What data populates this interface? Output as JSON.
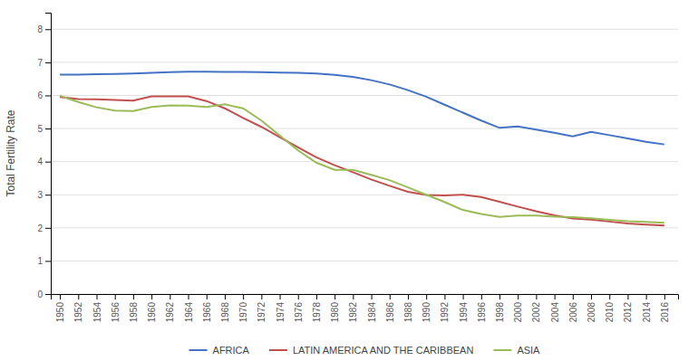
{
  "chart_data": {
    "type": "line",
    "ylabel": "Total Fertility Rate",
    "x": [
      1950,
      1952,
      1954,
      1956,
      1958,
      1960,
      1962,
      1964,
      1966,
      1968,
      1970,
      1972,
      1974,
      1976,
      1978,
      1980,
      1982,
      1984,
      1986,
      1988,
      1990,
      1992,
      1994,
      1996,
      1998,
      2000,
      2002,
      2004,
      2006,
      2008,
      2010,
      2012,
      2014,
      2016
    ],
    "series": [
      {
        "name": "AFRICA",
        "color": "#4472C4",
        "values": [
          6.63,
          6.63,
          6.64,
          6.65,
          6.66,
          6.68,
          6.7,
          6.72,
          6.72,
          6.71,
          6.71,
          6.7,
          6.69,
          6.68,
          6.66,
          6.62,
          6.56,
          6.46,
          6.33,
          6.16,
          5.96,
          5.72,
          5.48,
          5.24,
          5.02,
          5.06,
          4.97,
          4.87,
          4.76,
          4.9,
          4.8,
          4.7,
          4.6,
          4.52
        ]
      },
      {
        "name": "LATIN AMERICA AND THE CARIBBEAN",
        "color": "#C0504D",
        "values": [
          5.95,
          5.89,
          5.88,
          5.86,
          5.84,
          5.97,
          5.97,
          5.97,
          5.83,
          5.61,
          5.32,
          5.05,
          4.74,
          4.43,
          4.13,
          3.89,
          3.68,
          3.46,
          3.27,
          3.09,
          2.99,
          2.98,
          3.0,
          2.93,
          2.79,
          2.64,
          2.5,
          2.38,
          2.28,
          2.25,
          2.19,
          2.13,
          2.1,
          2.07
        ]
      },
      {
        "name": "ASIA",
        "color": "#9BBB59",
        "values": [
          5.99,
          5.8,
          5.64,
          5.54,
          5.53,
          5.65,
          5.7,
          5.69,
          5.65,
          5.73,
          5.61,
          5.24,
          4.79,
          4.34,
          3.97,
          3.75,
          3.75,
          3.6,
          3.44,
          3.22,
          3.0,
          2.78,
          2.54,
          2.42,
          2.33,
          2.37,
          2.37,
          2.34,
          2.32,
          2.29,
          2.24,
          2.2,
          2.18,
          2.15
        ]
      }
    ],
    "xlim": [
      1949,
      2017.5
    ],
    "xticks": [
      1950,
      1952,
      1954,
      1956,
      1958,
      1960,
      1962,
      1964,
      1966,
      1968,
      1970,
      1972,
      1974,
      1976,
      1978,
      1980,
      1982,
      1984,
      1986,
      1988,
      1990,
      1992,
      1994,
      1996,
      1998,
      2000,
      2002,
      2004,
      2006,
      2008,
      2010,
      2012,
      2014,
      2016
    ],
    "ylim": [
      0,
      8.5
    ],
    "yticks": [
      0,
      1,
      2,
      3,
      4,
      5,
      6,
      7,
      8
    ],
    "grid": true,
    "legend": "bottom"
  }
}
